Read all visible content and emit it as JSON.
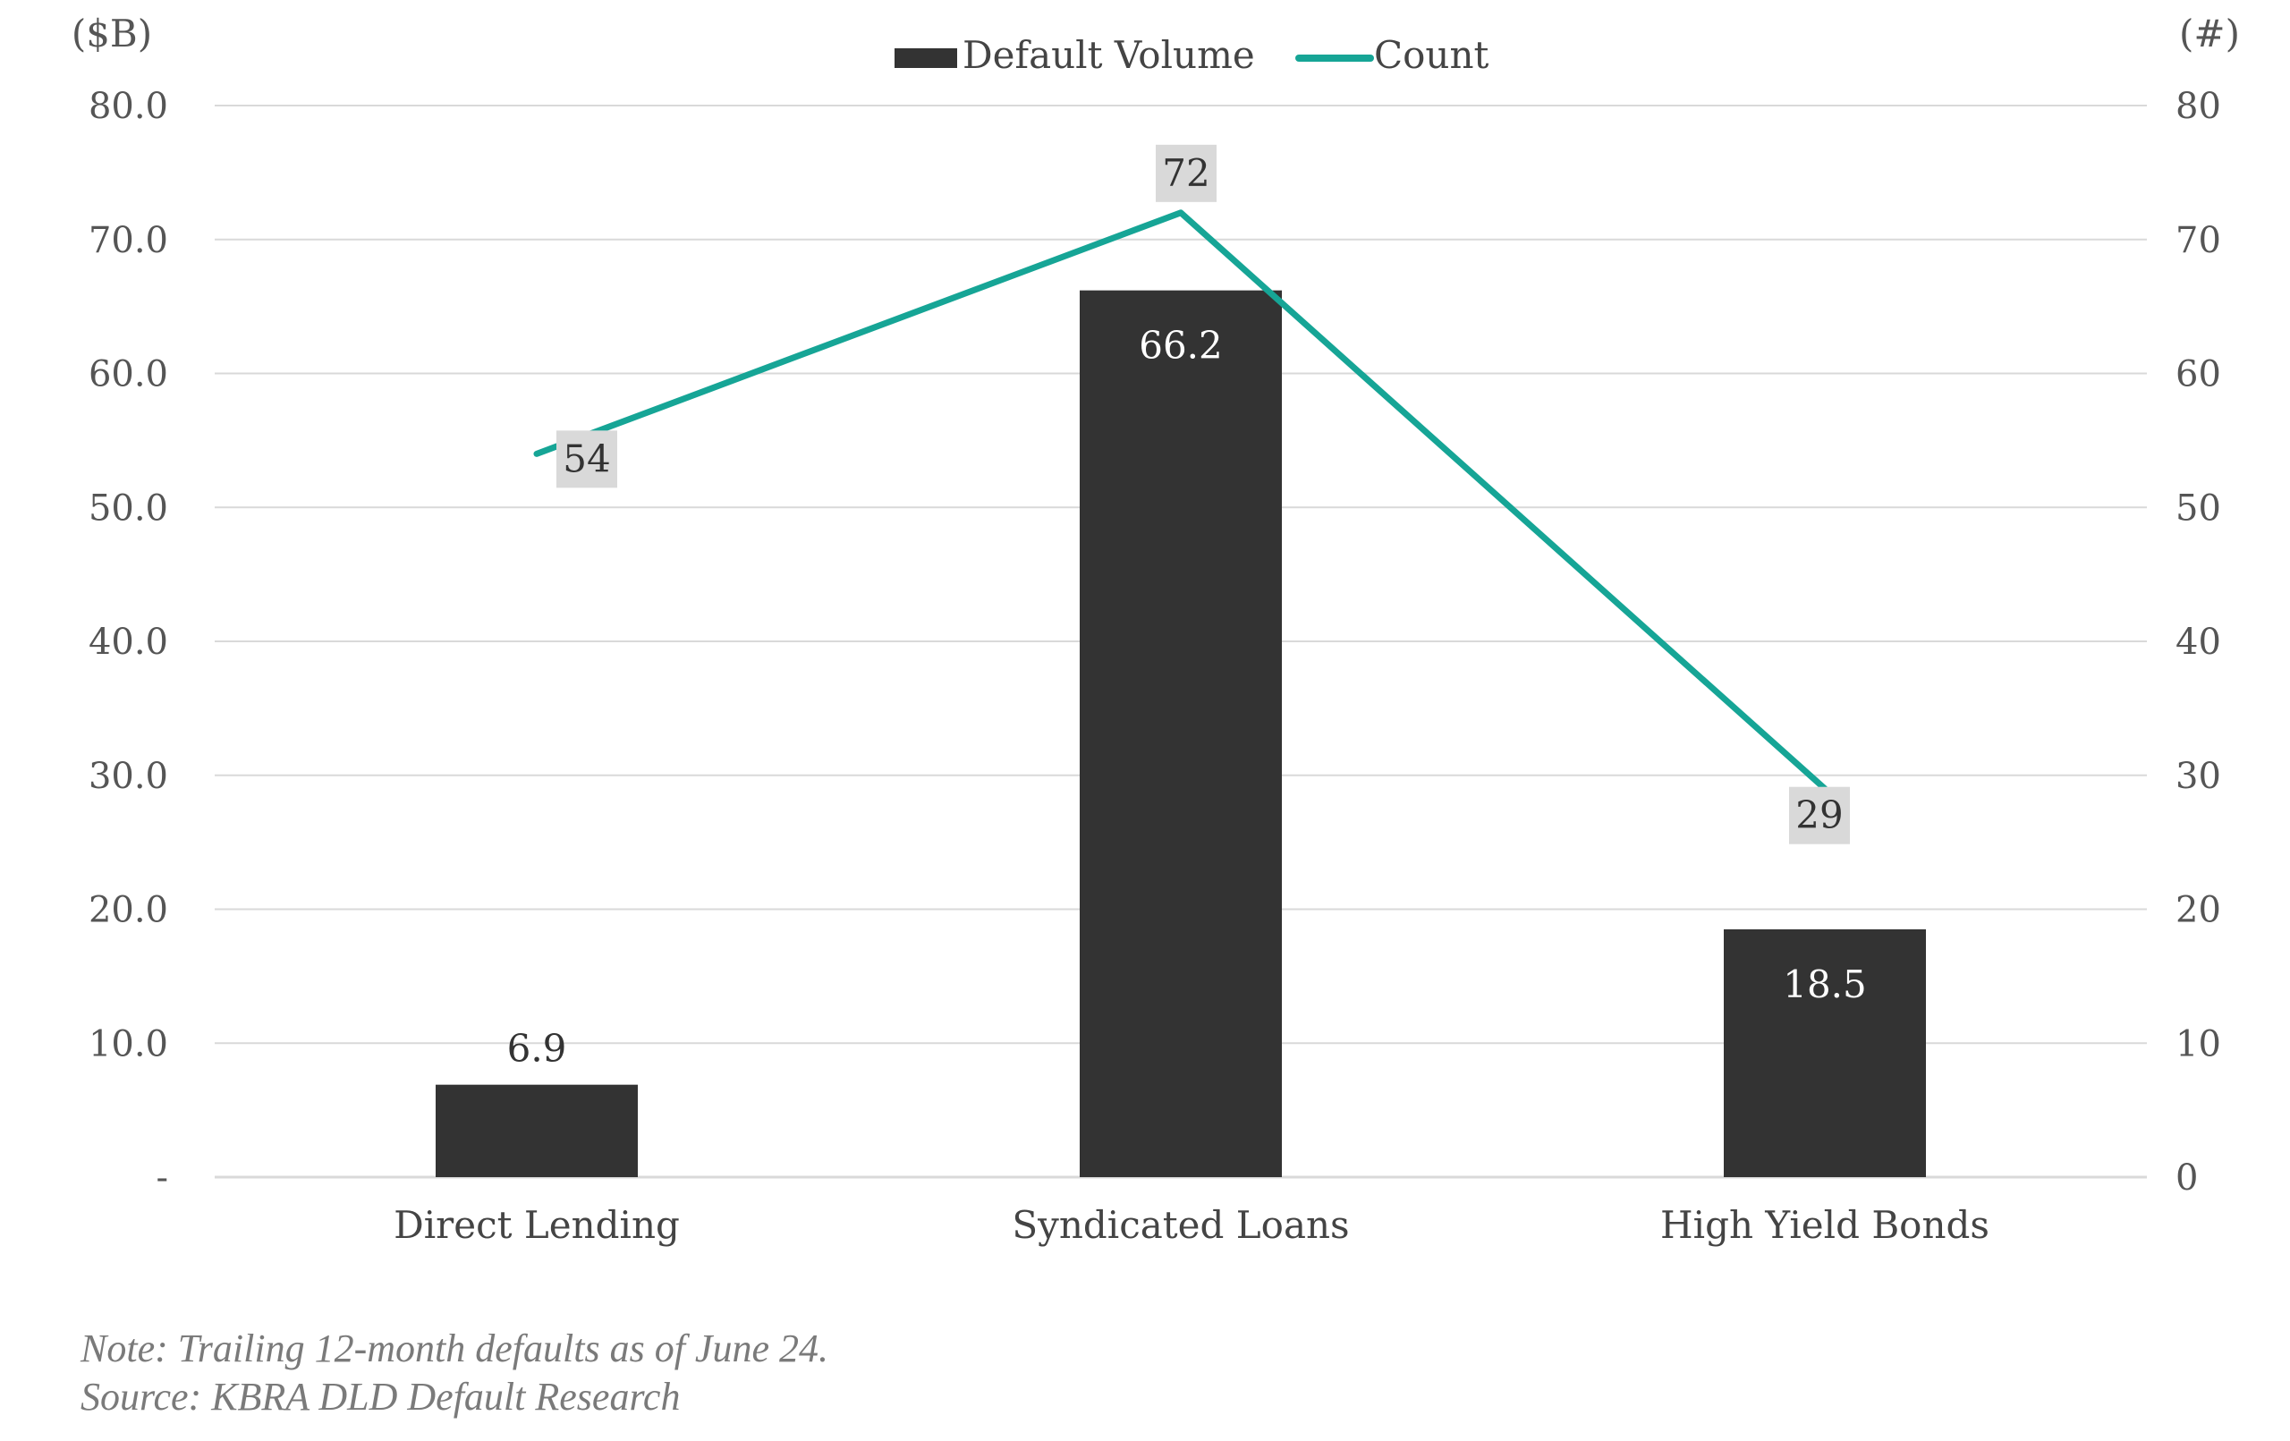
{
  "chart_data": {
    "type": "bar",
    "categories": [
      "Direct Lending",
      "Syndicated Loans",
      "High Yield Bonds"
    ],
    "series": [
      {
        "name": "Default Volume",
        "kind": "bar",
        "axis": "left",
        "values": [
          6.9,
          66.2,
          18.5
        ],
        "labels": [
          "6.9",
          "66.2",
          "18.5"
        ],
        "color": "#333333"
      },
      {
        "name": "Count",
        "kind": "line",
        "axis": "right",
        "values": [
          54,
          72,
          29
        ],
        "labels": [
          "54",
          "72",
          "29"
        ],
        "color": "#16a596"
      }
    ],
    "left_axis": {
      "unit_label": "($B)",
      "ylim": [
        0,
        80
      ],
      "ticks": [
        "-",
        "10.0",
        "20.0",
        "30.0",
        "40.0",
        "50.0",
        "60.0",
        "70.0",
        "80.0"
      ]
    },
    "right_axis": {
      "unit_label": "(#)",
      "ylim": [
        0,
        80
      ],
      "ticks": [
        "0",
        "10",
        "20",
        "30",
        "40",
        "50",
        "60",
        "70",
        "80"
      ]
    },
    "legend": {
      "position": "top-center",
      "entries": [
        "Default Volume",
        "Count"
      ]
    },
    "grid": true,
    "label_box_color": "#d9d9d9",
    "gridline_color": "#d9d9d9"
  },
  "footnote": {
    "note": "Note: Trailing 12-month defaults as of June 24.",
    "source": "Source: KBRA DLD Default Research"
  }
}
